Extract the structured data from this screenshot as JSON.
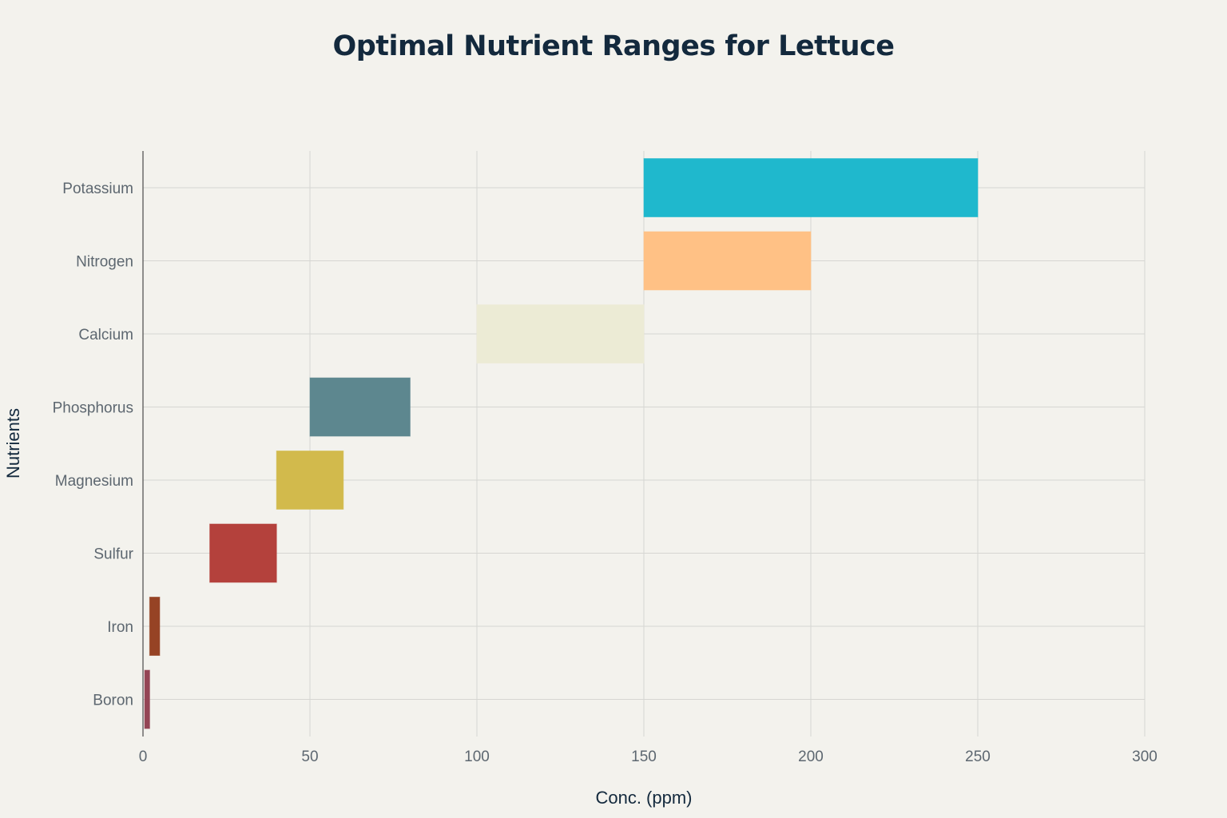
{
  "chart_data": {
    "type": "bar",
    "orientation": "horizontal",
    "title": "Optimal Nutrient Ranges for Lettuce",
    "xlabel": "Conc. (ppm)",
    "ylabel": "Nutrients",
    "xlim": [
      0,
      300
    ],
    "xticks": [
      "0",
      "50",
      "100",
      "150",
      "200",
      "250",
      "300"
    ],
    "grid": true,
    "legend": "none",
    "categories": [
      "Potassium",
      "Nitrogen",
      "Calcium",
      "Phosphorus",
      "Magnesium",
      "Sulfur",
      "Iron",
      "Boron"
    ],
    "ranges": [
      {
        "name": "Potassium",
        "min": 150,
        "max": 250,
        "color": "#1fb8cd"
      },
      {
        "name": "Nitrogen",
        "min": 150,
        "max": 200,
        "color": "#ffc185"
      },
      {
        "name": "Calcium",
        "min": 100,
        "max": 150,
        "color": "#ecebd5"
      },
      {
        "name": "Phosphorus",
        "min": 50,
        "max": 80,
        "color": "#5d878f"
      },
      {
        "name": "Magnesium",
        "min": 40,
        "max": 60,
        "color": "#d2ba4c"
      },
      {
        "name": "Sulfur",
        "min": 20,
        "max": 40,
        "color": "#b4413c"
      },
      {
        "name": "Iron",
        "min": 2,
        "max": 5,
        "color": "#964325"
      },
      {
        "name": "Boron",
        "min": 0.5,
        "max": 2,
        "color": "#944454"
      }
    ]
  },
  "colors": {
    "background": "#f3f2ed",
    "grid": "#d6d6d2",
    "axis_line": "#4a4a4a",
    "tick_text": "#5d6770",
    "title_text": "#13293d"
  }
}
